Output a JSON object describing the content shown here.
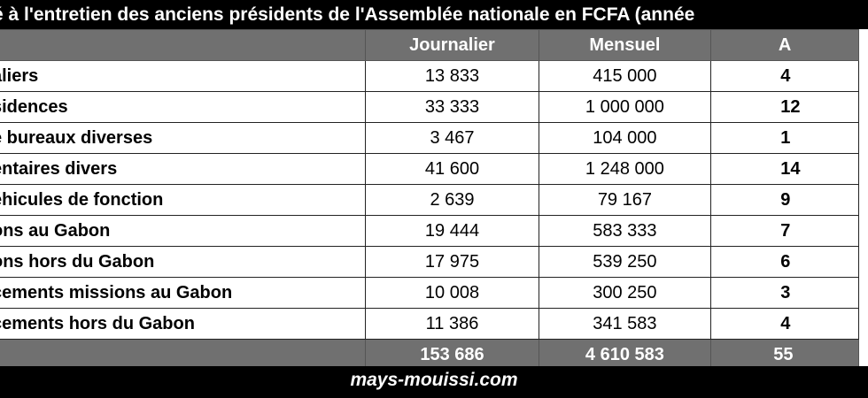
{
  "title": "é à l'entretien des anciens présidents de l'Assemblée nationale en FCFA (année",
  "columns": [
    "",
    "Journalier",
    "Mensuel",
    "A"
  ],
  "rows": [
    {
      "label": "aliers",
      "journalier": "13 833",
      "mensuel": "415 000",
      "annuel": "4"
    },
    {
      "label": "sidences",
      "journalier": "33 333",
      "mensuel": "1 000 000",
      "annuel": "12"
    },
    {
      "label": "e bureaux diverses",
      "journalier": "3 467",
      "mensuel": "104 000",
      "annuel": "1"
    },
    {
      "label": "entaires divers",
      "journalier": "41 600",
      "mensuel": "1 248 000",
      "annuel": "14"
    },
    {
      "label": "éhicules de fonction",
      "journalier": "2 639",
      "mensuel": "79 167",
      "annuel": "9"
    },
    {
      "label": "ons au Gabon",
      "journalier": "19 444",
      "mensuel": "583 333",
      "annuel": "7"
    },
    {
      "label": "ons hors du Gabon",
      "journalier": "17 975",
      "mensuel": "539 250",
      "annuel": "6"
    },
    {
      "label": "cements missions au Gabon",
      "journalier": "10 008",
      "mensuel": "300 250",
      "annuel": "3"
    },
    {
      "label": "cements hors du Gabon",
      "journalier": "11 386",
      "mensuel": "341 583",
      "annuel": "4"
    }
  ],
  "total": {
    "label": "",
    "journalier": "153 686",
    "mensuel": "4 610 583",
    "annuel": "55"
  },
  "footer": "mays-mouissi.com",
  "colors": {
    "header_bg": "#707070",
    "bar_bg": "#000000",
    "text": "#000000"
  }
}
